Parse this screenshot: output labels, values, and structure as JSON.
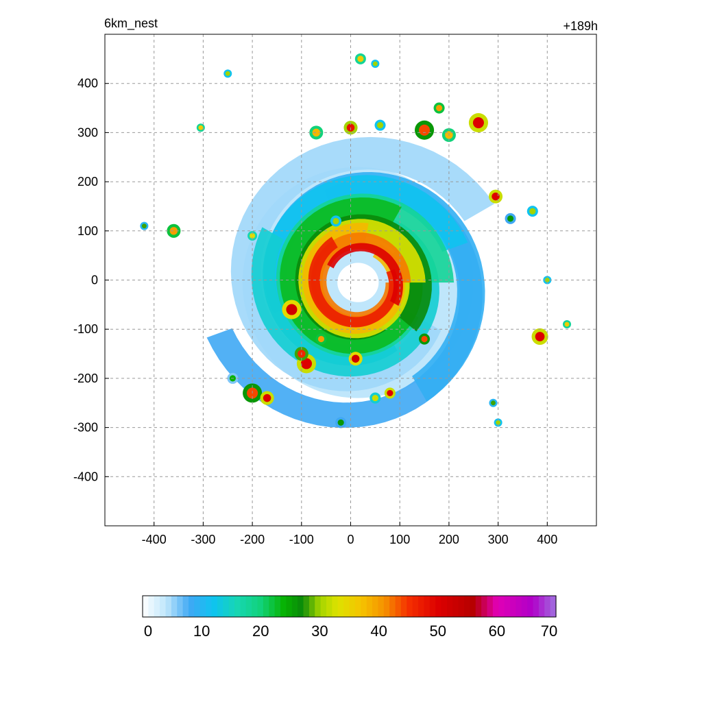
{
  "header": {
    "left_title": "6km_nest",
    "right_title": "+189h"
  },
  "chart_data": {
    "type": "heatmap",
    "title": "6km_nest",
    "subtitle": "+189h",
    "xlabel": "",
    "ylabel": "",
    "xlim": [
      -500,
      500
    ],
    "ylim": [
      -500,
      500
    ],
    "xticks": [
      -400,
      -300,
      -200,
      -100,
      0,
      100,
      200,
      300,
      400
    ],
    "yticks": [
      -400,
      -300,
      -200,
      -100,
      0,
      100,
      200,
      300,
      400
    ],
    "grid": true,
    "grid_style": "dashed",
    "field": {
      "description_visible": "filled contours of a tropical cyclone, eye near center with clear region",
      "eye_center": [
        15,
        -5
      ],
      "max_value_approx": 55
    },
    "colorbar": {
      "orientation": "horizontal",
      "placement": "bottom",
      "min": 0,
      "max": 70,
      "tick_labels": [
        "0",
        "10",
        "20",
        "30",
        "40",
        "50",
        "60",
        "70"
      ],
      "tick_values": [
        0,
        10,
        20,
        30,
        40,
        50,
        60,
        70
      ],
      "stops": [
        {
          "v": 0,
          "c": "#ffffff"
        },
        {
          "v": 4,
          "c": "#bfe6fb"
        },
        {
          "v": 8,
          "c": "#3fa8f4"
        },
        {
          "v": 12,
          "c": "#0fc3f0"
        },
        {
          "v": 16,
          "c": "#17d6b3"
        },
        {
          "v": 20,
          "c": "#11d27a"
        },
        {
          "v": 24,
          "c": "#07b200"
        },
        {
          "v": 27,
          "c": "#0a8a0a"
        },
        {
          "v": 30,
          "c": "#a3d400"
        },
        {
          "v": 33,
          "c": "#dde200"
        },
        {
          "v": 37,
          "c": "#f5c400"
        },
        {
          "v": 41,
          "c": "#f59100"
        },
        {
          "v": 45,
          "c": "#f53000"
        },
        {
          "v": 50,
          "c": "#dd0000"
        },
        {
          "v": 56,
          "c": "#b50000"
        },
        {
          "v": 60,
          "c": "#e100b4"
        },
        {
          "v": 66,
          "c": "#b000c8"
        },
        {
          "v": 70,
          "c": "#a070e0"
        }
      ]
    }
  }
}
